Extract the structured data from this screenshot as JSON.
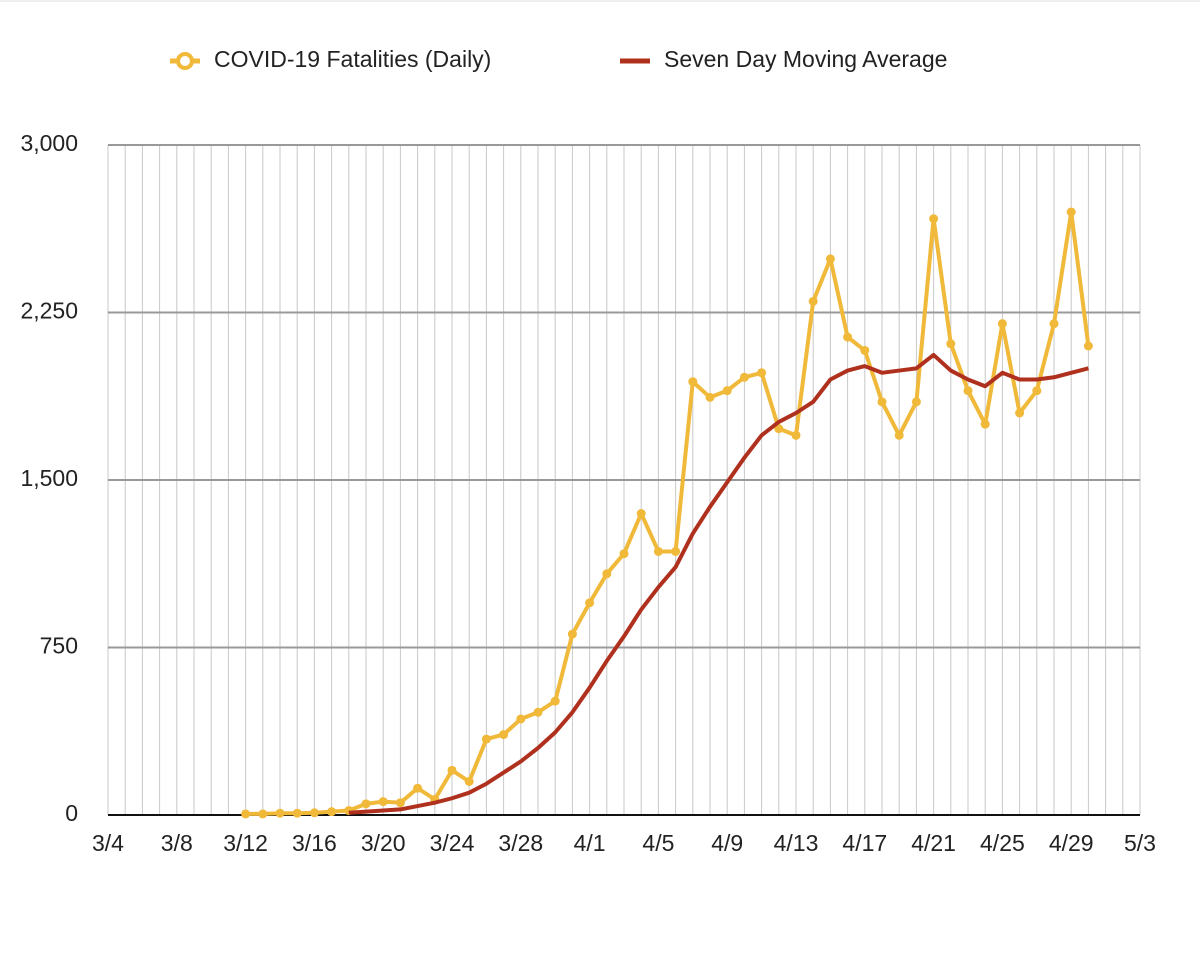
{
  "chart_data": {
    "type": "line",
    "categories": [
      "3/4",
      null,
      null,
      null,
      "3/8",
      null,
      null,
      null,
      "3/12",
      null,
      null,
      null,
      "3/16",
      null,
      null,
      null,
      "3/20",
      null,
      null,
      null,
      "3/24",
      null,
      null,
      null,
      "3/28",
      null,
      null,
      null,
      "4/1",
      null,
      null,
      null,
      "4/5",
      null,
      null,
      null,
      "4/9",
      null,
      null,
      null,
      "4/13",
      null,
      null,
      null,
      "4/17",
      null,
      null,
      null,
      "4/21",
      null,
      null,
      null,
      "4/25",
      null,
      null,
      null,
      "4/29",
      null,
      null,
      null,
      "5/3"
    ],
    "series": [
      {
        "name": "COVID-19 Fatalities (Daily)",
        "color": "#f0b93a",
        "markers": true,
        "values": [
          null,
          null,
          null,
          null,
          null,
          null,
          null,
          null,
          5,
          5,
          8,
          8,
          10,
          15,
          20,
          50,
          60,
          55,
          120,
          70,
          200,
          150,
          340,
          360,
          430,
          460,
          510,
          810,
          950,
          1080,
          1170,
          1350,
          1180,
          1180,
          1940,
          1870,
          1900,
          1960,
          1980,
          1730,
          1700,
          2300,
          2490,
          2140,
          2080,
          1850,
          1700,
          1850,
          2670,
          2110,
          1900,
          1750,
          2200,
          1800,
          1900,
          2200,
          2700,
          2100,
          null,
          null,
          null
        ]
      },
      {
        "name": "Seven Day Moving Average",
        "color": "#b0301e",
        "markers": false,
        "values": [
          null,
          null,
          null,
          null,
          null,
          null,
          null,
          null,
          null,
          null,
          null,
          null,
          null,
          null,
          10,
          15,
          20,
          25,
          40,
          55,
          75,
          100,
          140,
          190,
          240,
          300,
          370,
          460,
          570,
          690,
          800,
          920,
          1020,
          1110,
          1260,
          1380,
          1490,
          1600,
          1700,
          1760,
          1800,
          1850,
          1950,
          1990,
          2010,
          1980,
          1990,
          2000,
          2060,
          1990,
          1950,
          1920,
          1980,
          1950,
          1950,
          1960,
          1980,
          2000,
          null,
          null,
          null
        ]
      }
    ],
    "ylim": [
      0,
      3000
    ],
    "yticks": [
      0,
      750,
      {
        "value": 1500,
        "label": "1,500"
      },
      {
        "value": 2250,
        "label": "2,250"
      },
      {
        "value": 3000,
        "label": "3,000"
      }
    ],
    "grid": true,
    "legend": "top"
  }
}
